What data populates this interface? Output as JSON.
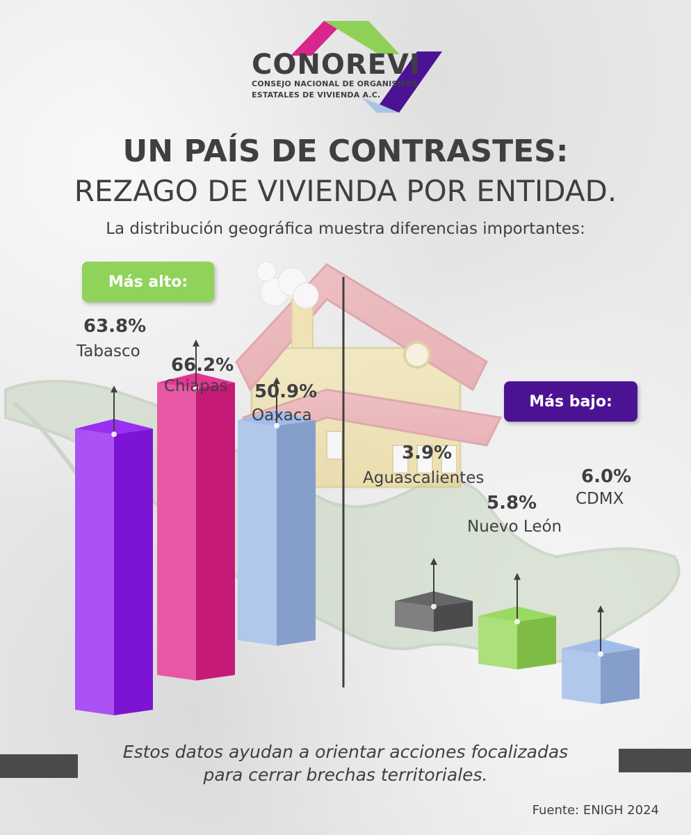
{
  "brand": {
    "name": "CONOREVI",
    "line1": "CONSEJO NACIONAL DE ORGANISMOS",
    "line2": "ESTATALES DE VIVIENDA A.C.",
    "colors": {
      "magenta": "#d8268c",
      "green": "#8fd156",
      "purple": "#4b1393",
      "light_blue": "#a9c3e6"
    }
  },
  "header": {
    "title": "UN PAÍS DE CONTRASTES:",
    "subtitle": "REZAGO DE VIVIENDA POR ENTIDAD.",
    "intro": "La distribución geográfica muestra diferencias importantes:"
  },
  "groups": {
    "high_label": "Más alto:",
    "low_label": "Más bajo:",
    "high_color": "#90d35a",
    "low_color": "#4b1393"
  },
  "chart_data": {
    "type": "bar",
    "unit": "%",
    "groups": [
      {
        "label": "Más alto:",
        "bars": [
          {
            "state": "Tabasco",
            "value": 63.8,
            "label": "63.8%",
            "color": "#8d18f0"
          },
          {
            "state": "Chiapas",
            "value": 66.2,
            "label": "66.2%",
            "color": "#e01f86"
          },
          {
            "state": "Oaxaca",
            "value": 50.9,
            "label": "50.9%",
            "color": "#98b4e6"
          }
        ]
      },
      {
        "label": "Más bajo:",
        "bars": [
          {
            "state": "Aguascalientes",
            "value": 3.9,
            "label": "3.9%",
            "color": "#555557"
          },
          {
            "state": "Nuevo León",
            "value": 5.8,
            "label": "5.8%",
            "color": "#8fd64e"
          },
          {
            "state": "CDMX",
            "value": 6.0,
            "label": "6.0%",
            "color": "#98b4e6"
          }
        ]
      }
    ]
  },
  "footer": {
    "line1": "Estos datos ayudan a orientar acciones focalizadas",
    "line2": "para cerrar brechas territoriales.",
    "source": "Fuente: ENIGH 2024"
  }
}
